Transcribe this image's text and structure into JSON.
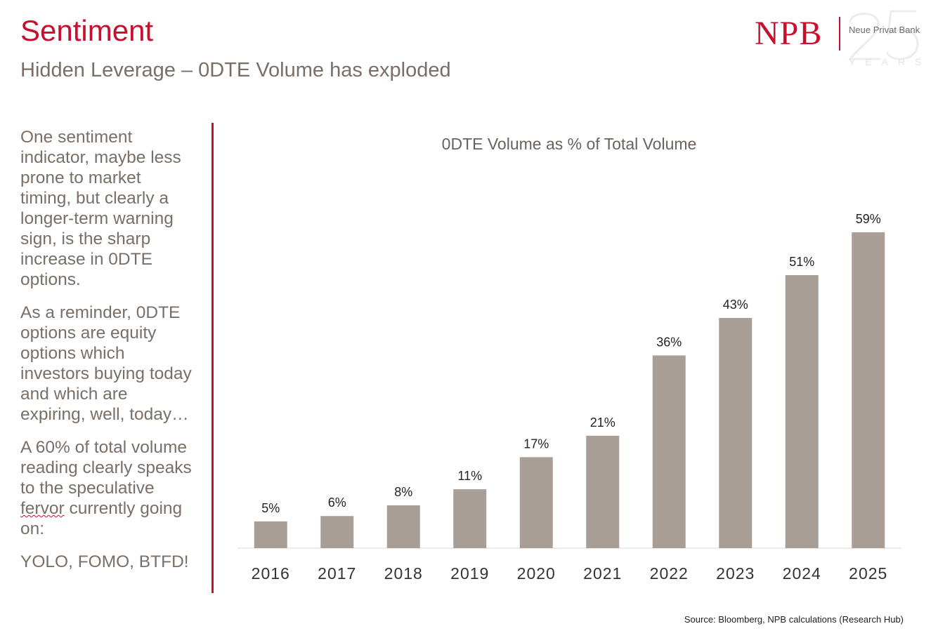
{
  "header": {
    "title": "Sentiment",
    "subtitle": "Hidden Leverage – 0DTE Volume has exploded"
  },
  "logo": {
    "brand": "NPB",
    "bank_name": "Neue Privat Bank",
    "anniversary": "25",
    "years": "YEARS"
  },
  "commentary": {
    "p1": "One sentiment indicator, maybe less prone to market timing, but clearly a longer-term warning sign, is the sharp increase in 0DTE options.",
    "p2": "As a reminder, 0DTE options are equity options which investors buying today and which are expiring, well, today…",
    "p3a": "A 60% of total volume reading clearly speaks to the speculative ",
    "p3b": "fervor",
    "p3c": " currently going on:",
    "p4": "YOLO, FOMO, BTFD!"
  },
  "chart_data": {
    "type": "bar",
    "title": "0DTE Volume as % of Total Volume",
    "categories": [
      "2016",
      "2017",
      "2018",
      "2019",
      "2020",
      "2021",
      "2022",
      "2023",
      "2024",
      "2025"
    ],
    "values": [
      5,
      6,
      8,
      11,
      17,
      21,
      36,
      43,
      51,
      59
    ],
    "labels": [
      "5%",
      "6%",
      "8%",
      "11%",
      "17%",
      "21%",
      "36%",
      "43%",
      "51%",
      "59%"
    ],
    "xlabel": "",
    "ylabel": "",
    "ylim": [
      0,
      59
    ],
    "grid": false,
    "bar_color": "#a89e95"
  },
  "footer": {
    "source": "Source: Bloomberg, NPB calculations (Research Hub)"
  }
}
